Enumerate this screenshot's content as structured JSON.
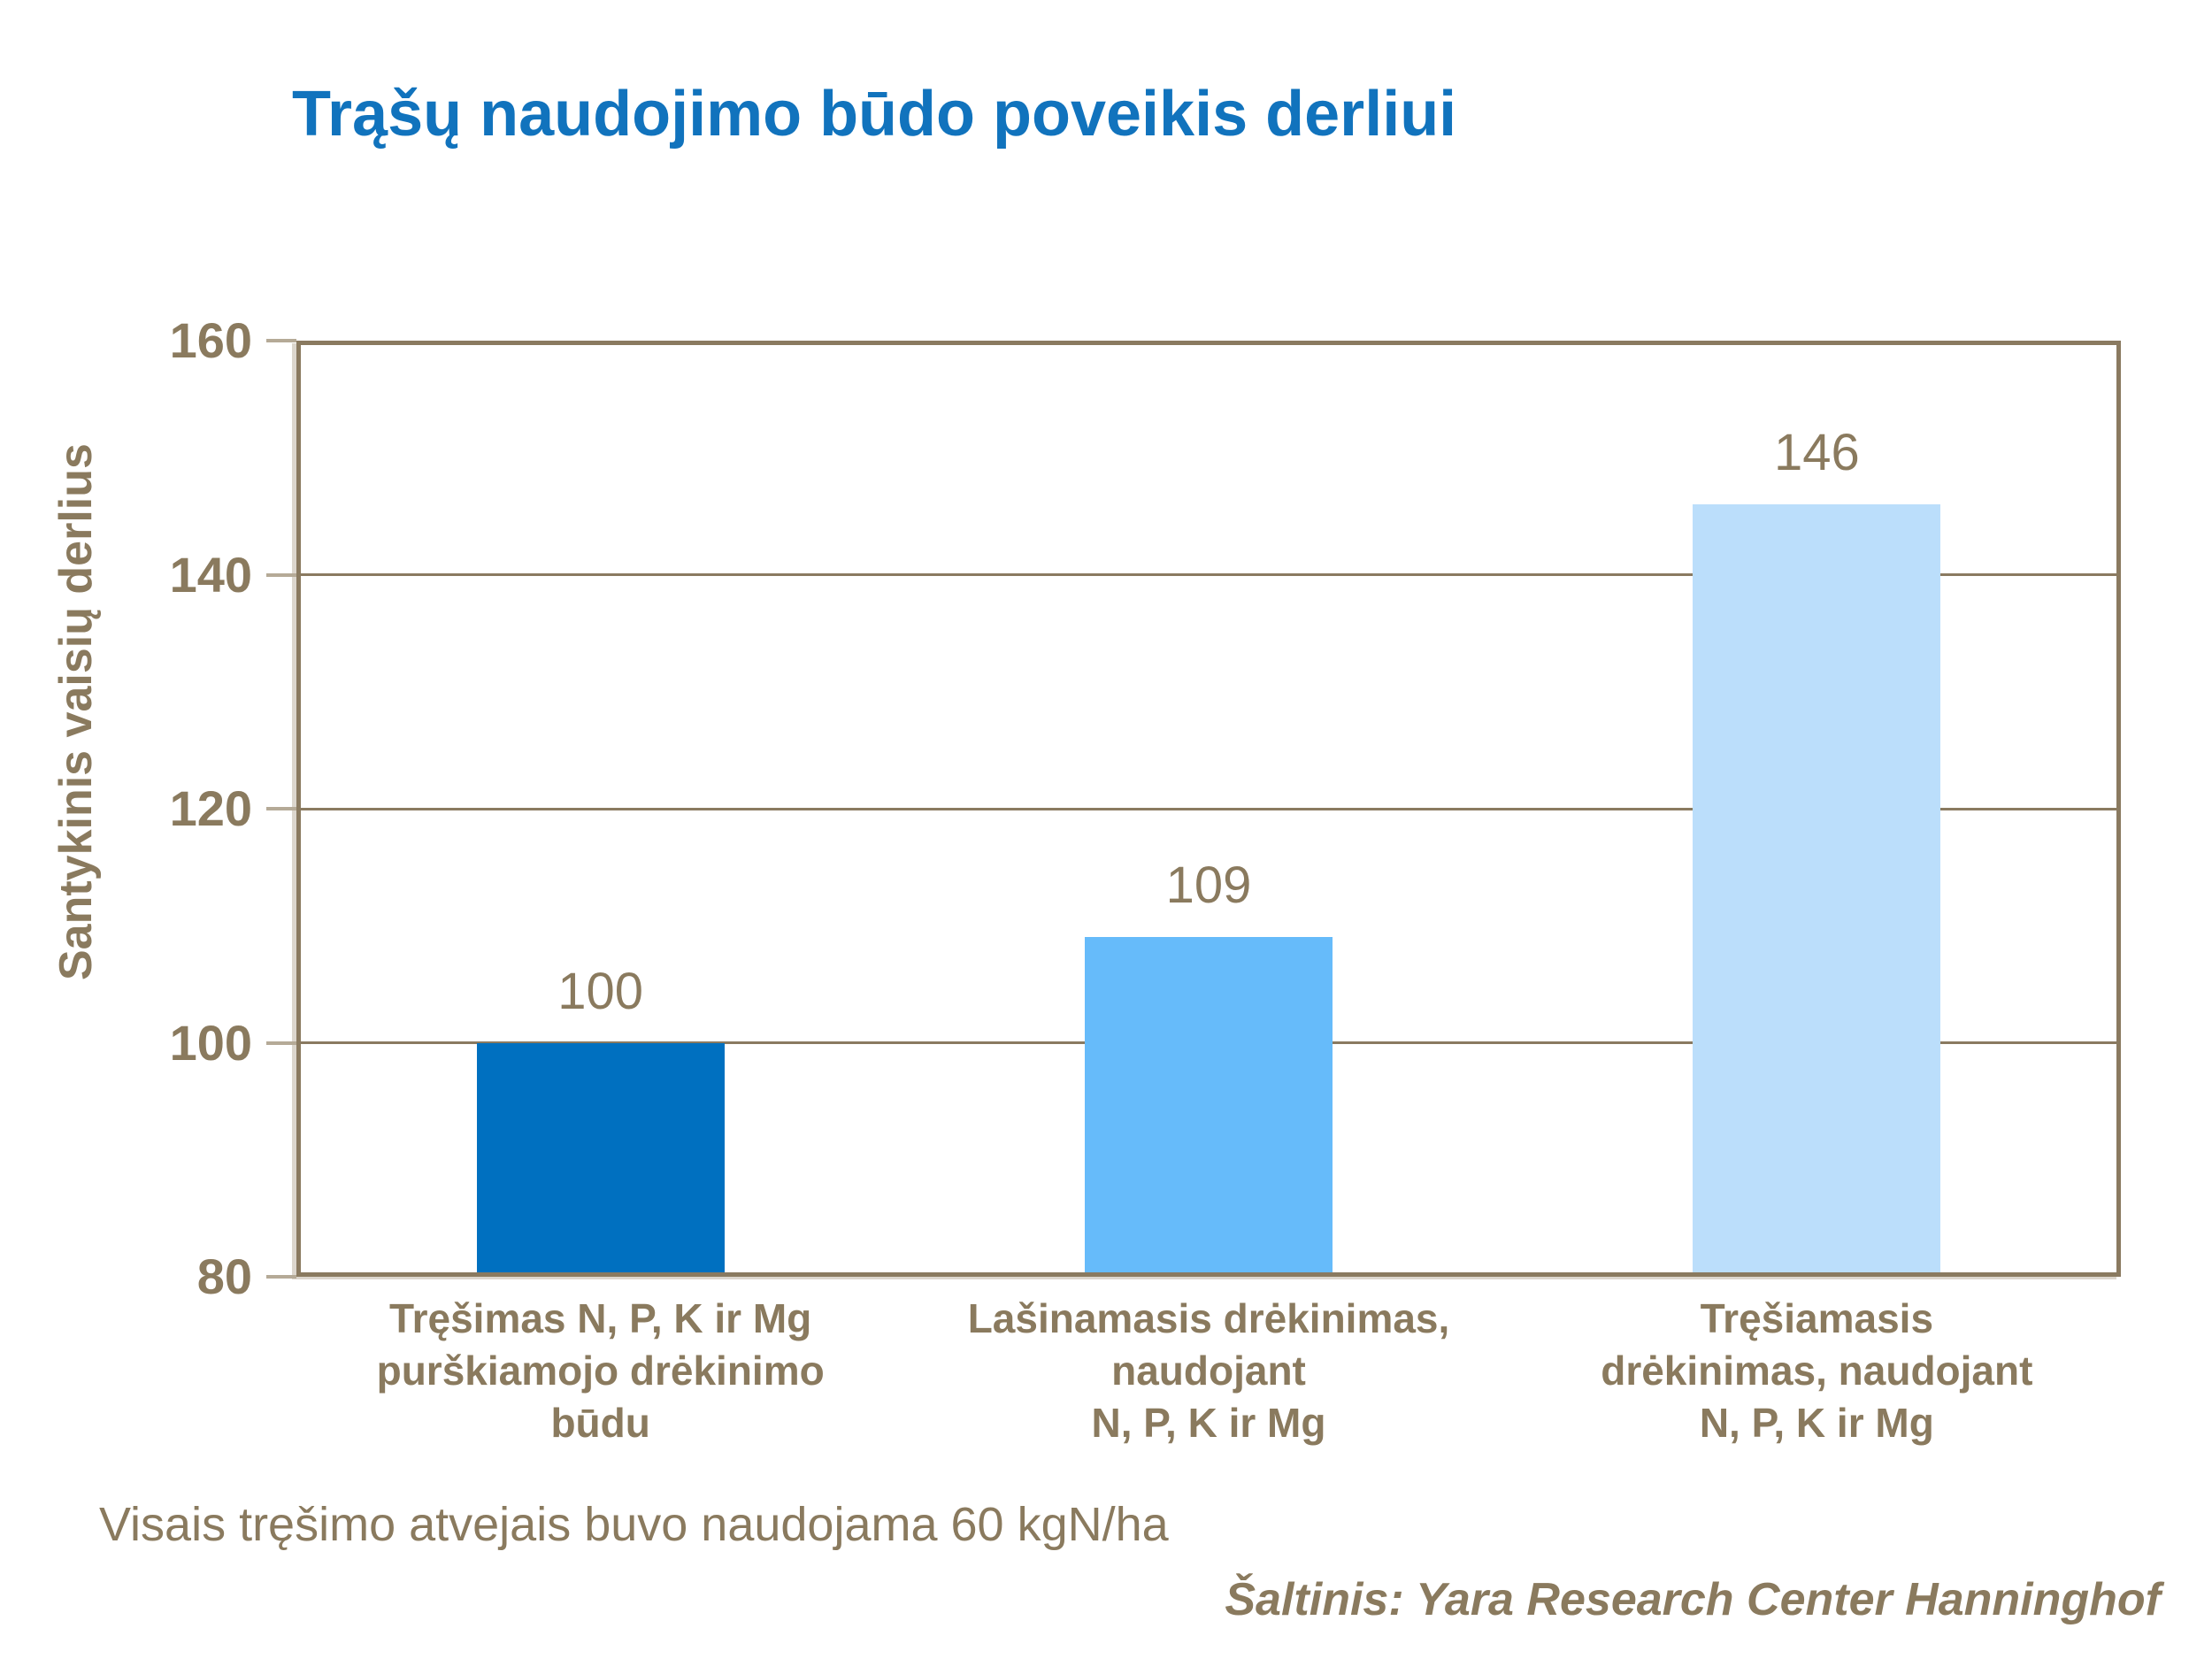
{
  "title": "Trąšų naudojimo būdo poveikis derliui",
  "footnote": "Visais tręšimo atvejais buvo naudojama 60 kgN/ha",
  "source": "Šaltinis: Yara Research Center Hanninghof",
  "colors": {
    "title_blue": "#1173BD",
    "text_brown": "#8A7A5E",
    "axis_frame_brown": "#8A7A60",
    "tick_mark_tan": "#B5AA97"
  },
  "chart_data": {
    "type": "bar",
    "title": "Trąšų naudojimo būdo poveikis derliui",
    "xlabel": "",
    "ylabel": "Santykinis vaisių derlius",
    "ylim": [
      80,
      160
    ],
    "yticks": [
      80,
      100,
      120,
      140,
      160
    ],
    "grid": "horizontal",
    "legend": "none",
    "categories": [
      [
        "Tręšimas N, P, K ir Mg",
        "purškiamojo drėkinimo",
        "būdu"
      ],
      [
        "Lašinamasis drėkinimas,",
        "naudojant",
        "N, P, K ir Mg"
      ],
      [
        "Tręšiamasis",
        "drėkinimas, naudojant",
        "N, P, K ir Mg"
      ]
    ],
    "values": [
      100,
      109,
      146
    ],
    "data_labels": [
      "100",
      "109",
      "146"
    ],
    "bar_colors": [
      "#0070C0",
      "#66BBFA",
      "#BBDEFB"
    ]
  }
}
